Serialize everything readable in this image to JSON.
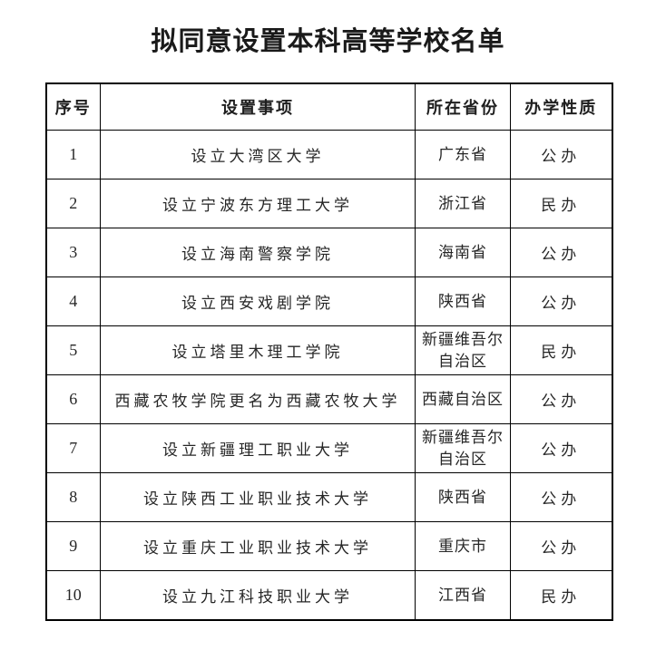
{
  "page": {
    "title": "拟同意设置本科高等学校名单"
  },
  "colors": {
    "background": "#ffffff",
    "border": "#000000",
    "text": "#262626",
    "title_text": "#1a1a1a"
  },
  "table": {
    "columns": [
      {
        "key": "index",
        "label": "序号"
      },
      {
        "key": "item",
        "label": "设置事项"
      },
      {
        "key": "province",
        "label": "所在省份"
      },
      {
        "key": "nature",
        "label": "办学性质"
      }
    ],
    "rows": [
      {
        "index": "1",
        "item": "设立大湾区大学",
        "province": "广东省",
        "nature": "公办"
      },
      {
        "index": "2",
        "item": "设立宁波东方理工大学",
        "province": "浙江省",
        "nature": "民办"
      },
      {
        "index": "3",
        "item": "设立海南警察学院",
        "province": "海南省",
        "nature": "公办"
      },
      {
        "index": "4",
        "item": "设立西安戏剧学院",
        "province": "陕西省",
        "nature": "公办"
      },
      {
        "index": "5",
        "item": "设立塔里木理工学院",
        "province": "新疆维吾尔自治区",
        "nature": "民办"
      },
      {
        "index": "6",
        "item": "西藏农牧学院更名为西藏农牧大学",
        "province": "西藏自治区",
        "nature": "公办"
      },
      {
        "index": "7",
        "item": "设立新疆理工职业大学",
        "province": "新疆维吾尔自治区",
        "nature": "公办"
      },
      {
        "index": "8",
        "item": "设立陕西工业职业技术大学",
        "province": "陕西省",
        "nature": "公办"
      },
      {
        "index": "9",
        "item": "设立重庆工业职业技术大学",
        "province": "重庆市",
        "nature": "公办"
      },
      {
        "index": "10",
        "item": "设立九江科技职业大学",
        "province": "江西省",
        "nature": "民办"
      }
    ]
  }
}
